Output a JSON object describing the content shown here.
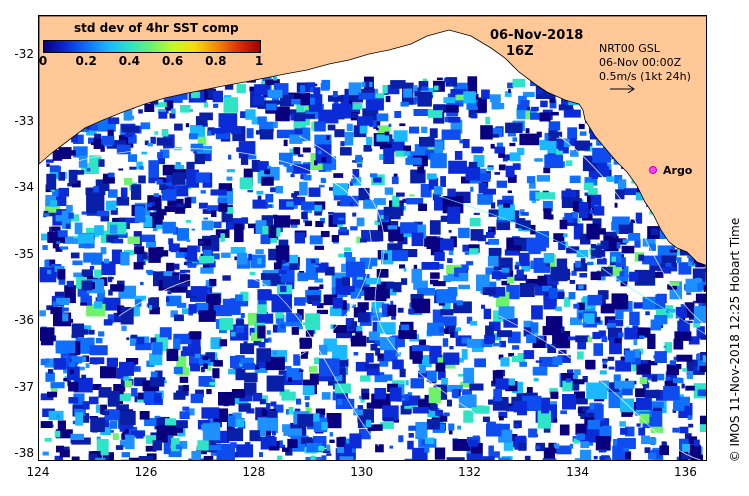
{
  "map": {
    "lon_ticks": [
      "124",
      "126",
      "128",
      "130",
      "132",
      "134",
      "136"
    ],
    "lat_ticks": [
      "-32",
      "-33",
      "-34",
      "-35",
      "-36",
      "-37",
      "-38"
    ],
    "lon_range": [
      124,
      136.4
    ],
    "lat_range": [
      -31.4,
      -38.1
    ],
    "land_color": "#ffc896"
  },
  "colorbar": {
    "title": "std dev of 4hr SST comp",
    "ticks": [
      "0",
      "0.2",
      "0.4",
      "0.6",
      "0.8",
      "1"
    ]
  },
  "header": {
    "date": "06-Nov-2018",
    "hour": "16Z"
  },
  "current_legend": {
    "line1": "NRT00 GSL",
    "line2": "06-Nov 00:00Z",
    "line3": "0.5m/s (1kt 24h)"
  },
  "argo": {
    "label": "Argo",
    "marker_color": "#ff40ff"
  },
  "credit": "© IMOS 11-Nov-2018 12:25 Hobart Time"
}
